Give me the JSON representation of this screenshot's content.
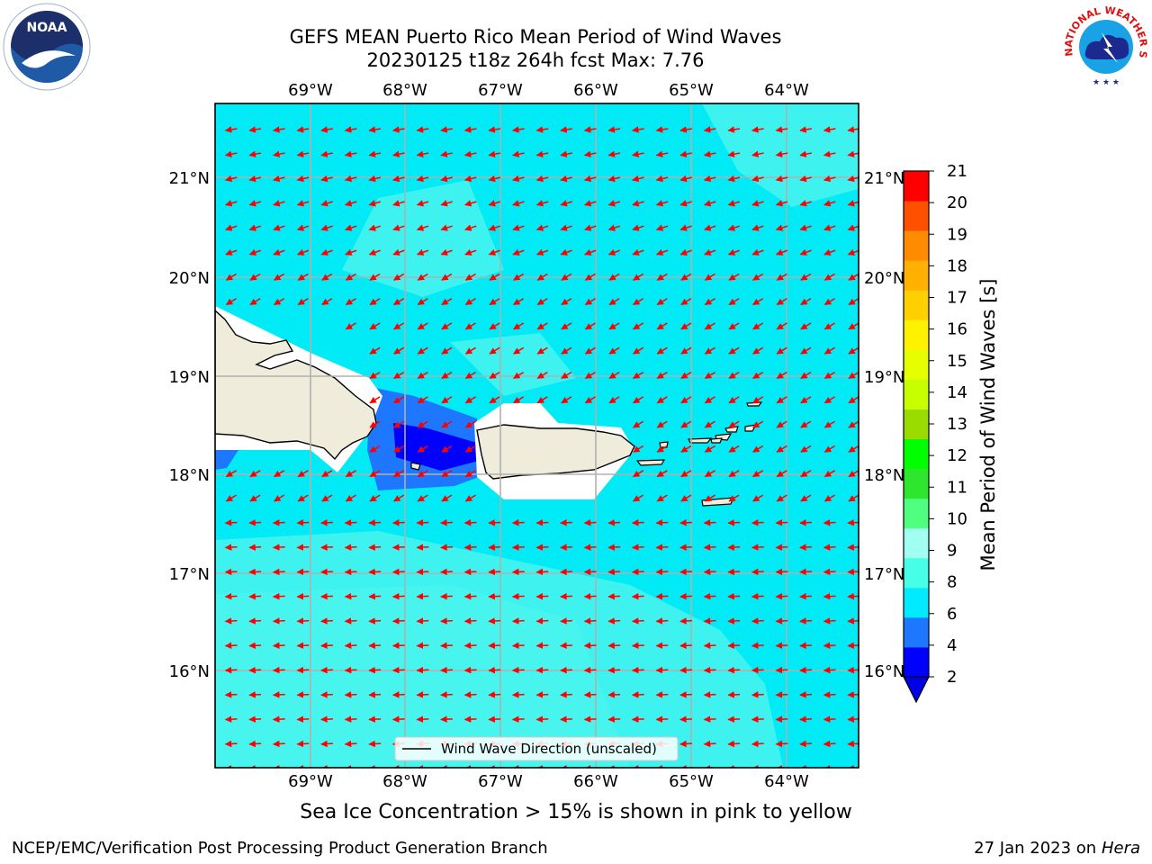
{
  "title_line1": "GEFS MEAN Puerto Rico Mean Period of Wind Waves",
  "title_line2": "20230125 t18z 264h fcst   Max: 7.76",
  "subcaption": "Sea Ice Concentration > 15% is shown in pink to yellow",
  "footer_left": "NCEP/EMC/Verification Post Processing Product Generation Branch",
  "footer_date": "27 Jan 2023 on ",
  "footer_machine": "Hera",
  "map": {
    "lon_ticks": [
      "69°W",
      "68°W",
      "67°W",
      "66°W",
      "65°W",
      "64°W"
    ],
    "lat_ticks": [
      "21°N",
      "20°N",
      "19°N",
      "18°N",
      "17°N",
      "16°N"
    ],
    "legend_label": "Wind Wave Direction (unscaled)",
    "ocean_color": "#00f5f5",
    "land_color": "#efecdc",
    "arrow_color": "#ff0000"
  },
  "colorbar": {
    "label": "Mean Period of Wind Waves [s]",
    "ticks": [
      "2",
      "4",
      "6",
      "8",
      "9",
      "10",
      "11",
      "12",
      "13",
      "14",
      "15",
      "16",
      "17",
      "18",
      "19",
      "20",
      "21"
    ],
    "colors": [
      "#0000ff",
      "#1e78ff",
      "#00ebff",
      "#46ffe6",
      "#a0fff0",
      "#50ff80",
      "#2ee62e",
      "#00ff00",
      "#9bdc00",
      "#c8ff00",
      "#e6ff00",
      "#fff200",
      "#ffd000",
      "#ffb000",
      "#ff8c00",
      "#ff5000",
      "#ff0000"
    ],
    "extend_color": "#0000e6"
  },
  "logos": {
    "noaa_text": "NOAA",
    "nws_text": "NATIONAL WEATHER SERVICE"
  }
}
